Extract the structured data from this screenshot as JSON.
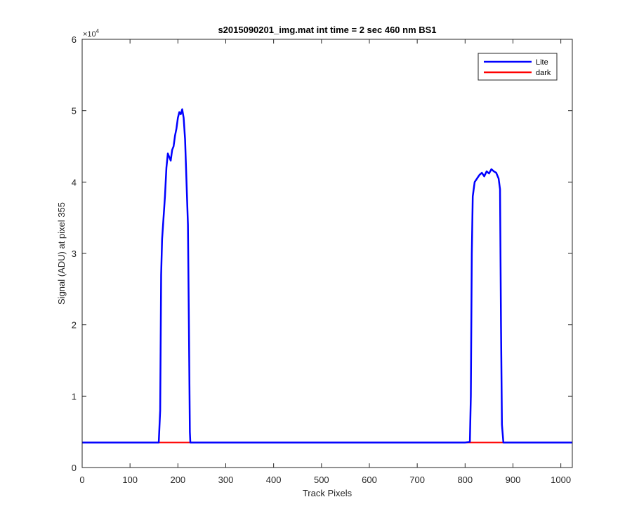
{
  "chart_data": {
    "type": "line",
    "title": "s2015090201_img.mat int time = 2 sec  460 nm BS1",
    "xlabel": "Track Pixels",
    "ylabel": "Signal (ADU) at pixel 355",
    "xlim": [
      0,
      1024
    ],
    "ylim": [
      0,
      60000
    ],
    "x_ticks": [
      0,
      100,
      200,
      300,
      400,
      500,
      600,
      700,
      800,
      900,
      1000
    ],
    "y_ticks": [
      0,
      10000,
      20000,
      30000,
      40000,
      50000,
      60000
    ],
    "y_tick_labels": [
      "0",
      "1",
      "2",
      "3",
      "4",
      "5",
      "6"
    ],
    "y_exponent_label": "×10",
    "y_exponent_power": "4",
    "grid": false,
    "legend_position": "top-right",
    "series": [
      {
        "name": "Lite",
        "color": "#0000ff",
        "x": [
          0,
          160,
          163,
          165,
          167,
          170,
          173,
          176,
          179,
          182,
          185,
          188,
          191,
          194,
          197,
          200,
          203,
          206,
          209,
          212,
          215,
          217,
          219,
          221,
          223,
          225,
          226,
          228,
          230,
          300,
          400,
          500,
          600,
          700,
          800,
          810,
          812,
          814,
          816,
          820,
          825,
          830,
          835,
          840,
          845,
          850,
          855,
          860,
          865,
          870,
          873,
          875,
          877,
          880,
          1024
        ],
        "y": [
          3500,
          3500,
          8000,
          27000,
          32000,
          35000,
          38000,
          42000,
          44000,
          43500,
          43000,
          44500,
          45000,
          46500,
          47500,
          49000,
          49800,
          49500,
          50200,
          49000,
          46000,
          42000,
          38000,
          34000,
          20000,
          5000,
          3500,
          3500,
          3500,
          3500,
          3500,
          3500,
          3500,
          3500,
          3500,
          3600,
          10000,
          30000,
          38000,
          40000,
          40500,
          41000,
          41300,
          40800,
          41500,
          41200,
          41800,
          41500,
          41300,
          40500,
          39000,
          20000,
          6000,
          3500,
          3500
        ]
      },
      {
        "name": "dark",
        "color": "#ff0000",
        "x": [
          0,
          1024
        ],
        "y": [
          3500,
          3500
        ]
      }
    ]
  }
}
